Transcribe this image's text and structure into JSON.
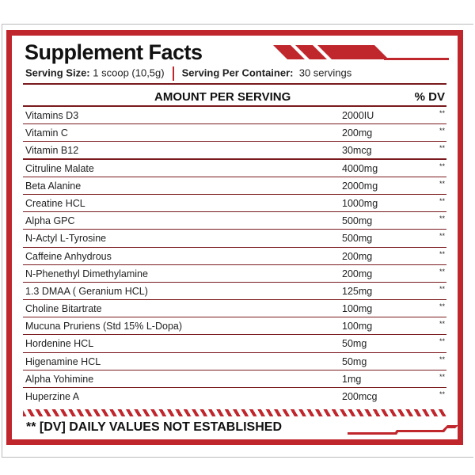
{
  "title": "Supplement Facts",
  "serving_size_label": "Serving Size:",
  "serving_size_value": "1 scoop (10,5g)",
  "servings_label": "Serving Per Container:",
  "servings_value": "30 servings",
  "header_amount": "AMOUNT PER SERVING",
  "header_dv": "% DV",
  "accent_color": "#c0272d",
  "rows": [
    {
      "name": "Vitamins D3",
      "amount": "2000IU",
      "dv": "**"
    },
    {
      "name": "Vitamin C",
      "amount": "200mg",
      "dv": "**"
    },
    {
      "name": "Vitamin B12",
      "amount": "30mcg",
      "dv": "**"
    },
    {
      "name": "Citruline Malate",
      "amount": "4000mg",
      "dv": "**"
    },
    {
      "name": "Beta Alanine",
      "amount": "2000mg",
      "dv": "**"
    },
    {
      "name": "Creatine HCL",
      "amount": "1000mg",
      "dv": "**"
    },
    {
      "name": "Alpha GPC",
      "amount": "500mg",
      "dv": "**"
    },
    {
      "name": "N-Actyl L-Tyrosine",
      "amount": "500mg",
      "dv": "**"
    },
    {
      "name": "Caffeine Anhydrous",
      "amount": "200mg",
      "dv": "**"
    },
    {
      "name": "N-Phenethyl Dimethylamine",
      "amount": "200mg",
      "dv": "**"
    },
    {
      "name": "1.3 DMAA ( Geranium HCL)",
      "amount": "125mg",
      "dv": "**"
    },
    {
      "name": "Choline Bitartrate",
      "amount": "100mg",
      "dv": "**"
    },
    {
      "name": "Mucuna Pruriens (Std 15% L-Dopa)",
      "amount": "100mg",
      "dv": "**"
    },
    {
      "name": "Hordenine HCL",
      "amount": "50mg",
      "dv": "**"
    },
    {
      "name": "Higenamine HCL",
      "amount": "50mg",
      "dv": "**"
    },
    {
      "name": "Alpha Yohimine",
      "amount": "1mg",
      "dv": "**"
    },
    {
      "name": "Huperzine A",
      "amount": "200mcg",
      "dv": "**"
    }
  ],
  "footnote": "** [DV] DAILY VALUES NOT ESTABLISHED"
}
